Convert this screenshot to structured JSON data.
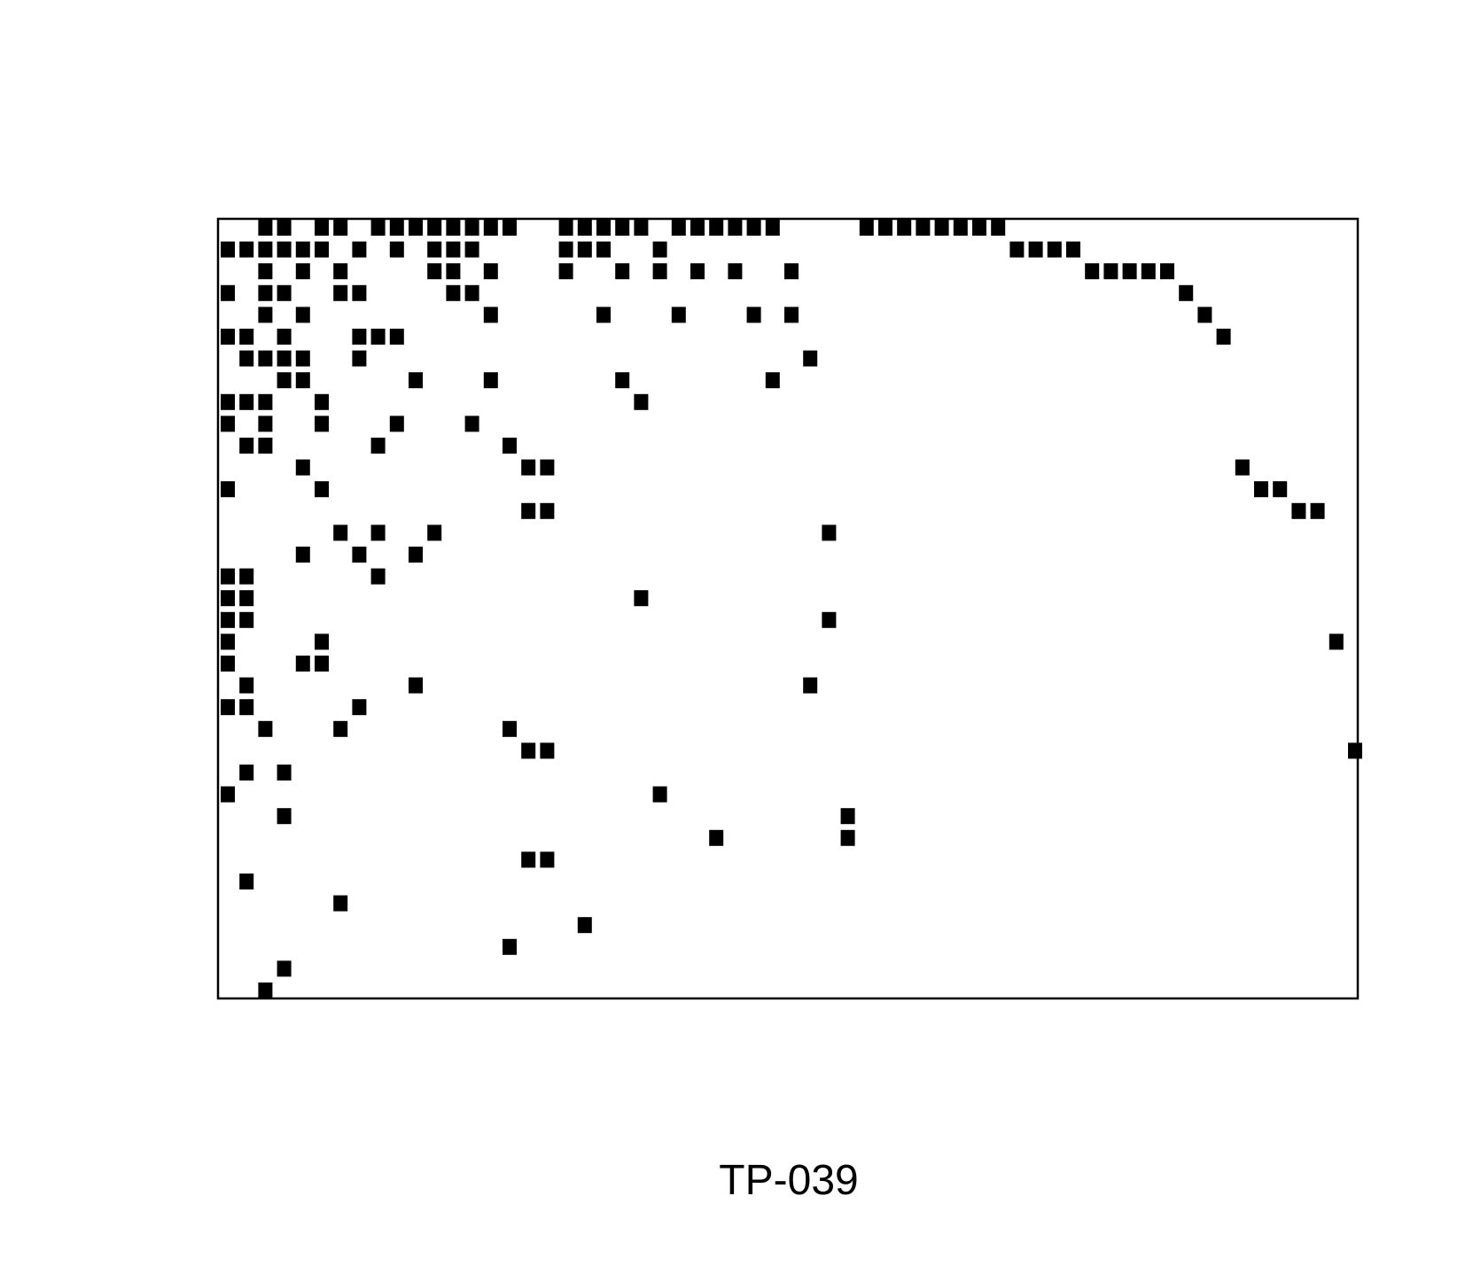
{
  "caption": "TP-039",
  "chart_data": {
    "type": "heatmap",
    "title": "",
    "xlabel": "",
    "ylabel": "",
    "xlim": [
      1,
      61
    ],
    "ylim": [
      1,
      36
    ],
    "axes_visible": false,
    "grid": false,
    "cell_color": "#000000",
    "cells": [
      {
        "x": 3,
        "y": 1
      },
      {
        "x": 4,
        "y": 1
      },
      {
        "x": 6,
        "y": 1
      },
      {
        "x": 7,
        "y": 1
      },
      {
        "x": 9,
        "y": 1
      },
      {
        "x": 10,
        "y": 1
      },
      {
        "x": 11,
        "y": 1
      },
      {
        "x": 12,
        "y": 1
      },
      {
        "x": 13,
        "y": 1
      },
      {
        "x": 14,
        "y": 1
      },
      {
        "x": 15,
        "y": 1
      },
      {
        "x": 16,
        "y": 1
      },
      {
        "x": 19,
        "y": 1
      },
      {
        "x": 20,
        "y": 1
      },
      {
        "x": 21,
        "y": 1
      },
      {
        "x": 22,
        "y": 1
      },
      {
        "x": 23,
        "y": 1
      },
      {
        "x": 25,
        "y": 1
      },
      {
        "x": 26,
        "y": 1
      },
      {
        "x": 27,
        "y": 1
      },
      {
        "x": 28,
        "y": 1
      },
      {
        "x": 29,
        "y": 1
      },
      {
        "x": 30,
        "y": 1
      },
      {
        "x": 35,
        "y": 1
      },
      {
        "x": 36,
        "y": 1
      },
      {
        "x": 37,
        "y": 1
      },
      {
        "x": 38,
        "y": 1
      },
      {
        "x": 39,
        "y": 1
      },
      {
        "x": 40,
        "y": 1
      },
      {
        "x": 41,
        "y": 1
      },
      {
        "x": 42,
        "y": 1
      },
      {
        "x": 1,
        "y": 2
      },
      {
        "x": 2,
        "y": 2
      },
      {
        "x": 3,
        "y": 2
      },
      {
        "x": 4,
        "y": 2
      },
      {
        "x": 5,
        "y": 2
      },
      {
        "x": 6,
        "y": 2
      },
      {
        "x": 8,
        "y": 2
      },
      {
        "x": 10,
        "y": 2
      },
      {
        "x": 12,
        "y": 2
      },
      {
        "x": 13,
        "y": 2
      },
      {
        "x": 14,
        "y": 2
      },
      {
        "x": 19,
        "y": 2
      },
      {
        "x": 20,
        "y": 2
      },
      {
        "x": 21,
        "y": 2
      },
      {
        "x": 24,
        "y": 2
      },
      {
        "x": 43,
        "y": 2
      },
      {
        "x": 44,
        "y": 2
      },
      {
        "x": 45,
        "y": 2
      },
      {
        "x": 46,
        "y": 2
      },
      {
        "x": 3,
        "y": 3
      },
      {
        "x": 5,
        "y": 3
      },
      {
        "x": 7,
        "y": 3
      },
      {
        "x": 12,
        "y": 3
      },
      {
        "x": 13,
        "y": 3
      },
      {
        "x": 15,
        "y": 3
      },
      {
        "x": 19,
        "y": 3
      },
      {
        "x": 22,
        "y": 3
      },
      {
        "x": 24,
        "y": 3
      },
      {
        "x": 26,
        "y": 3
      },
      {
        "x": 28,
        "y": 3
      },
      {
        "x": 31,
        "y": 3
      },
      {
        "x": 47,
        "y": 3
      },
      {
        "x": 48,
        "y": 3
      },
      {
        "x": 49,
        "y": 3
      },
      {
        "x": 50,
        "y": 3
      },
      {
        "x": 51,
        "y": 3
      },
      {
        "x": 1,
        "y": 4
      },
      {
        "x": 3,
        "y": 4
      },
      {
        "x": 4,
        "y": 4
      },
      {
        "x": 7,
        "y": 4
      },
      {
        "x": 8,
        "y": 4
      },
      {
        "x": 13,
        "y": 4
      },
      {
        "x": 14,
        "y": 4
      },
      {
        "x": 52,
        "y": 4
      },
      {
        "x": 3,
        "y": 5
      },
      {
        "x": 5,
        "y": 5
      },
      {
        "x": 15,
        "y": 5
      },
      {
        "x": 21,
        "y": 5
      },
      {
        "x": 25,
        "y": 5
      },
      {
        "x": 29,
        "y": 5
      },
      {
        "x": 31,
        "y": 5
      },
      {
        "x": 53,
        "y": 5
      },
      {
        "x": 1,
        "y": 6
      },
      {
        "x": 2,
        "y": 6
      },
      {
        "x": 4,
        "y": 6
      },
      {
        "x": 8,
        "y": 6
      },
      {
        "x": 9,
        "y": 6
      },
      {
        "x": 10,
        "y": 6
      },
      {
        "x": 54,
        "y": 6
      },
      {
        "x": 2,
        "y": 7
      },
      {
        "x": 3,
        "y": 7
      },
      {
        "x": 4,
        "y": 7
      },
      {
        "x": 5,
        "y": 7
      },
      {
        "x": 8,
        "y": 7
      },
      {
        "x": 32,
        "y": 7
      },
      {
        "x": 4,
        "y": 8
      },
      {
        "x": 5,
        "y": 8
      },
      {
        "x": 11,
        "y": 8
      },
      {
        "x": 15,
        "y": 8
      },
      {
        "x": 22,
        "y": 8
      },
      {
        "x": 30,
        "y": 8
      },
      {
        "x": 1,
        "y": 9
      },
      {
        "x": 2,
        "y": 9
      },
      {
        "x": 3,
        "y": 9
      },
      {
        "x": 6,
        "y": 9
      },
      {
        "x": 23,
        "y": 9
      },
      {
        "x": 1,
        "y": 10
      },
      {
        "x": 3,
        "y": 10
      },
      {
        "x": 6,
        "y": 10
      },
      {
        "x": 10,
        "y": 10
      },
      {
        "x": 14,
        "y": 10
      },
      {
        "x": 2,
        "y": 11
      },
      {
        "x": 3,
        "y": 11
      },
      {
        "x": 9,
        "y": 11
      },
      {
        "x": 16,
        "y": 11
      },
      {
        "x": 5,
        "y": 12
      },
      {
        "x": 17,
        "y": 12
      },
      {
        "x": 18,
        "y": 12
      },
      {
        "x": 55,
        "y": 12
      },
      {
        "x": 1,
        "y": 13
      },
      {
        "x": 6,
        "y": 13
      },
      {
        "x": 56,
        "y": 13
      },
      {
        "x": 57,
        "y": 13
      },
      {
        "x": 17,
        "y": 14
      },
      {
        "x": 18,
        "y": 14
      },
      {
        "x": 58,
        "y": 14
      },
      {
        "x": 59,
        "y": 14
      },
      {
        "x": 7,
        "y": 15
      },
      {
        "x": 9,
        "y": 15
      },
      {
        "x": 12,
        "y": 15
      },
      {
        "x": 33,
        "y": 15
      },
      {
        "x": 5,
        "y": 16
      },
      {
        "x": 8,
        "y": 16
      },
      {
        "x": 11,
        "y": 16
      },
      {
        "x": 1,
        "y": 17
      },
      {
        "x": 2,
        "y": 17
      },
      {
        "x": 9,
        "y": 17
      },
      {
        "x": 1,
        "y": 18
      },
      {
        "x": 2,
        "y": 18
      },
      {
        "x": 23,
        "y": 18
      },
      {
        "x": 1,
        "y": 19
      },
      {
        "x": 2,
        "y": 19
      },
      {
        "x": 33,
        "y": 19
      },
      {
        "x": 1,
        "y": 20
      },
      {
        "x": 6,
        "y": 20
      },
      {
        "x": 60,
        "y": 20
      },
      {
        "x": 1,
        "y": 21
      },
      {
        "x": 5,
        "y": 21
      },
      {
        "x": 6,
        "y": 21
      },
      {
        "x": 2,
        "y": 22
      },
      {
        "x": 11,
        "y": 22
      },
      {
        "x": 32,
        "y": 22
      },
      {
        "x": 1,
        "y": 23
      },
      {
        "x": 2,
        "y": 23
      },
      {
        "x": 8,
        "y": 23
      },
      {
        "x": 3,
        "y": 24
      },
      {
        "x": 7,
        "y": 24
      },
      {
        "x": 16,
        "y": 24
      },
      {
        "x": 17,
        "y": 25
      },
      {
        "x": 18,
        "y": 25
      },
      {
        "x": 61,
        "y": 25
      },
      {
        "x": 2,
        "y": 26
      },
      {
        "x": 4,
        "y": 26
      },
      {
        "x": 1,
        "y": 27
      },
      {
        "x": 24,
        "y": 27
      },
      {
        "x": 4,
        "y": 28
      },
      {
        "x": 34,
        "y": 28
      },
      {
        "x": 27,
        "y": 29
      },
      {
        "x": 34,
        "y": 29
      },
      {
        "x": 17,
        "y": 30
      },
      {
        "x": 18,
        "y": 30
      },
      {
        "x": 2,
        "y": 31
      },
      {
        "x": 7,
        "y": 32
      },
      {
        "x": 20,
        "y": 33
      },
      {
        "x": 16,
        "y": 34
      },
      {
        "x": 4,
        "y": 35
      },
      {
        "x": 3,
        "y": 36
      }
    ]
  }
}
